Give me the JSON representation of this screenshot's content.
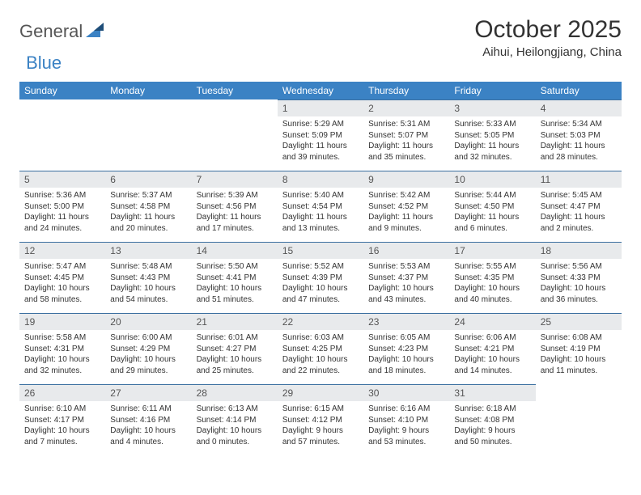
{
  "brand": {
    "general": "General",
    "blue": "Blue"
  },
  "title": "October 2025",
  "location": "Aihui, Heilongjiang, China",
  "colors": {
    "header_bg": "#3b82c4",
    "header_fg": "#ffffff",
    "daynum_bg": "#e8eaec",
    "rule": "#3b6fa0",
    "text": "#333333",
    "page_bg": "#ffffff"
  },
  "fonts": {
    "title_size": 30,
    "location_size": 15,
    "th_size": 12,
    "daynum_size": 12,
    "info_size": 10
  },
  "weekdays": [
    "Sunday",
    "Monday",
    "Tuesday",
    "Wednesday",
    "Thursday",
    "Friday",
    "Saturday"
  ],
  "leading_blanks": 3,
  "days": [
    {
      "n": 1,
      "sr": "5:29 AM",
      "ss": "5:09 PM",
      "dl": "11 hours and 39 minutes."
    },
    {
      "n": 2,
      "sr": "5:31 AM",
      "ss": "5:07 PM",
      "dl": "11 hours and 35 minutes."
    },
    {
      "n": 3,
      "sr": "5:33 AM",
      "ss": "5:05 PM",
      "dl": "11 hours and 32 minutes."
    },
    {
      "n": 4,
      "sr": "5:34 AM",
      "ss": "5:03 PM",
      "dl": "11 hours and 28 minutes."
    },
    {
      "n": 5,
      "sr": "5:36 AM",
      "ss": "5:00 PM",
      "dl": "11 hours and 24 minutes."
    },
    {
      "n": 6,
      "sr": "5:37 AM",
      "ss": "4:58 PM",
      "dl": "11 hours and 20 minutes."
    },
    {
      "n": 7,
      "sr": "5:39 AM",
      "ss": "4:56 PM",
      "dl": "11 hours and 17 minutes."
    },
    {
      "n": 8,
      "sr": "5:40 AM",
      "ss": "4:54 PM",
      "dl": "11 hours and 13 minutes."
    },
    {
      "n": 9,
      "sr": "5:42 AM",
      "ss": "4:52 PM",
      "dl": "11 hours and 9 minutes."
    },
    {
      "n": 10,
      "sr": "5:44 AM",
      "ss": "4:50 PM",
      "dl": "11 hours and 6 minutes."
    },
    {
      "n": 11,
      "sr": "5:45 AM",
      "ss": "4:47 PM",
      "dl": "11 hours and 2 minutes."
    },
    {
      "n": 12,
      "sr": "5:47 AM",
      "ss": "4:45 PM",
      "dl": "10 hours and 58 minutes."
    },
    {
      "n": 13,
      "sr": "5:48 AM",
      "ss": "4:43 PM",
      "dl": "10 hours and 54 minutes."
    },
    {
      "n": 14,
      "sr": "5:50 AM",
      "ss": "4:41 PM",
      "dl": "10 hours and 51 minutes."
    },
    {
      "n": 15,
      "sr": "5:52 AM",
      "ss": "4:39 PM",
      "dl": "10 hours and 47 minutes."
    },
    {
      "n": 16,
      "sr": "5:53 AM",
      "ss": "4:37 PM",
      "dl": "10 hours and 43 minutes."
    },
    {
      "n": 17,
      "sr": "5:55 AM",
      "ss": "4:35 PM",
      "dl": "10 hours and 40 minutes."
    },
    {
      "n": 18,
      "sr": "5:56 AM",
      "ss": "4:33 PM",
      "dl": "10 hours and 36 minutes."
    },
    {
      "n": 19,
      "sr": "5:58 AM",
      "ss": "4:31 PM",
      "dl": "10 hours and 32 minutes."
    },
    {
      "n": 20,
      "sr": "6:00 AM",
      "ss": "4:29 PM",
      "dl": "10 hours and 29 minutes."
    },
    {
      "n": 21,
      "sr": "6:01 AM",
      "ss": "4:27 PM",
      "dl": "10 hours and 25 minutes."
    },
    {
      "n": 22,
      "sr": "6:03 AM",
      "ss": "4:25 PM",
      "dl": "10 hours and 22 minutes."
    },
    {
      "n": 23,
      "sr": "6:05 AM",
      "ss": "4:23 PM",
      "dl": "10 hours and 18 minutes."
    },
    {
      "n": 24,
      "sr": "6:06 AM",
      "ss": "4:21 PM",
      "dl": "10 hours and 14 minutes."
    },
    {
      "n": 25,
      "sr": "6:08 AM",
      "ss": "4:19 PM",
      "dl": "10 hours and 11 minutes."
    },
    {
      "n": 26,
      "sr": "6:10 AM",
      "ss": "4:17 PM",
      "dl": "10 hours and 7 minutes."
    },
    {
      "n": 27,
      "sr": "6:11 AM",
      "ss": "4:16 PM",
      "dl": "10 hours and 4 minutes."
    },
    {
      "n": 28,
      "sr": "6:13 AM",
      "ss": "4:14 PM",
      "dl": "10 hours and 0 minutes."
    },
    {
      "n": 29,
      "sr": "6:15 AM",
      "ss": "4:12 PM",
      "dl": "9 hours and 57 minutes."
    },
    {
      "n": 30,
      "sr": "6:16 AM",
      "ss": "4:10 PM",
      "dl": "9 hours and 53 minutes."
    },
    {
      "n": 31,
      "sr": "6:18 AM",
      "ss": "4:08 PM",
      "dl": "9 hours and 50 minutes."
    }
  ],
  "labels": {
    "sunrise": "Sunrise:",
    "sunset": "Sunset:",
    "daylight": "Daylight:"
  }
}
